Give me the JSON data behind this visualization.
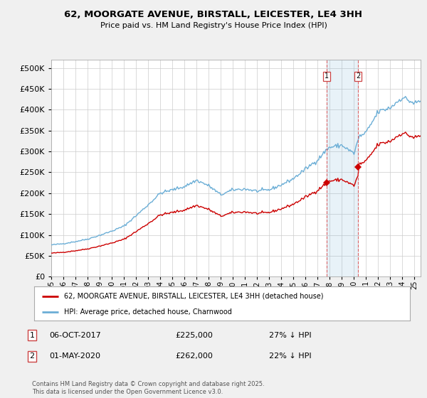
{
  "title": "62, MOORGATE AVENUE, BIRSTALL, LEICESTER, LE4 3HH",
  "subtitle": "Price paid vs. HM Land Registry's House Price Index (HPI)",
  "hpi_label": "HPI: Average price, detached house, Charnwood",
  "property_label": "62, MOORGATE AVENUE, BIRSTALL, LEICESTER, LE4 3HH (detached house)",
  "footnote": "Contains HM Land Registry data © Crown copyright and database right 2025.\nThis data is licensed under the Open Government Licence v3.0.",
  "transaction1_date": "06-OCT-2017",
  "transaction1_price": "£225,000",
  "transaction1_hpi": "27% ↓ HPI",
  "transaction2_date": "01-MAY-2020",
  "transaction2_price": "£262,000",
  "transaction2_hpi": "22% ↓ HPI",
  "hpi_color": "#6baed6",
  "property_color": "#cc0000",
  "bg_color": "#f0f0f0",
  "plot_bg": "#ffffff",
  "vline1_year": 2017,
  "vline1_month": 10,
  "vline2_year": 2020,
  "vline2_month": 5,
  "transaction1_value": 225000,
  "transaction2_value": 262000,
  "ylim_min": 0,
  "ylim_max": 520000,
  "yticks": [
    0,
    50000,
    100000,
    150000,
    200000,
    250000,
    300000,
    350000,
    400000,
    450000,
    500000
  ],
  "xmin": 1995.0,
  "xmax": 2025.5
}
